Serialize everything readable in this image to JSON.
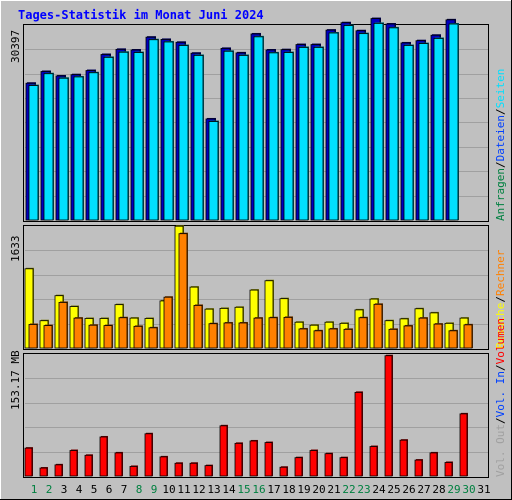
{
  "chart_data": {
    "type": "bar",
    "title": "Tages-Statistik im Monat Juni 2024",
    "days": [
      "1",
      "2",
      "3",
      "4",
      "5",
      "6",
      "7",
      "8",
      "9",
      "10",
      "11",
      "12",
      "13",
      "14",
      "15",
      "16",
      "17",
      "18",
      "19",
      "20",
      "21",
      "22",
      "23",
      "24",
      "25",
      "26",
      "27",
      "28",
      "29",
      "30",
      "31"
    ],
    "weekend_days": [
      "1",
      "2",
      "8",
      "9",
      "15",
      "16",
      "22",
      "23",
      "29",
      "30"
    ],
    "panels": {
      "top": {
        "ylabel": "30397",
        "ymax": 30397,
        "series": [
          {
            "name": "Anfragen",
            "values": [
              21320,
              23150,
              22450,
              22650,
              23300,
              25800,
              26600,
              26500,
              28500,
              28150,
              27700,
              26000,
              15750,
              26750,
              26050,
              29000,
              26500,
              26550,
              27350,
              27350,
              29600,
              30750,
              29500,
              31400,
              30550,
              27600,
              27950,
              28800,
              31200,
              null,
              null
            ]
          },
          {
            "name": "Seiten",
            "values": [
              20950,
              22800,
              22100,
              22300,
              22950,
              25350,
              26150,
              26100,
              28100,
              27750,
              27200,
              25650,
              15350,
              26300,
              25650,
              28550,
              26050,
              26100,
              26900,
              26900,
              29150,
              30300,
              29050,
              30650,
              29950,
              27200,
              27500,
              28300,
              30550,
              null,
              null
            ]
          },
          {
            "name": "Dateien",
            "values": [
              null,
              null,
              null,
              null,
              null,
              null,
              null,
              null,
              null,
              null,
              null,
              null,
              null,
              null,
              null,
              null,
              null,
              null,
              null,
              null,
              null,
              null,
              null,
              null,
              null,
              null,
              null,
              null,
              null,
              null,
              null
            ]
          }
        ]
      },
      "middle": {
        "ylabel": "1633",
        "ymax": 1633,
        "series": [
          {
            "name": "Besuche",
            "values": [
              1060,
              365,
              700,
              555,
              395,
              395,
              580,
              400,
              395,
              630,
              1630,
              815,
              520,
              530,
              545,
              775,
              900,
              660,
              345,
              305,
              345,
              330,
              510,
              655,
              365,
              390,
              525,
              470,
              330,
              400,
              null
            ]
          },
          {
            "name": "Rechner",
            "values": [
              315,
              300,
              610,
              400,
              305,
              300,
              405,
              290,
              270,
              680,
              1530,
              570,
              325,
              335,
              335,
              400,
              405,
              410,
              255,
              230,
              255,
              250,
              405,
              585,
              250,
              295,
              400,
              320,
              230,
              310,
              null
            ]
          }
        ]
      },
      "bottom": {
        "ylabel": "153.17 MB",
        "ymax": 153.17,
        "series": [
          {
            "name": "Volumen",
            "values": [
              35,
              10,
              14,
              32,
              26,
              49,
              29,
              12,
              53,
              24,
              16,
              16,
              13,
              63,
              41,
              44,
              42,
              11,
              23,
              32,
              28,
              23,
              105,
              37,
              151,
              45,
              20,
              29,
              17,
              78,
              null
            ]
          }
        ]
      }
    },
    "right_legend": {
      "top": [
        {
          "label": "Anfragen",
          "color": "#008040"
        },
        {
          "label": "/",
          "color": "#000000"
        },
        {
          "label": "Dateien",
          "color": "#0040ff"
        },
        {
          "label": "/",
          "color": "#000000"
        },
        {
          "label": "Seiten",
          "color": "#00e0ff"
        }
      ],
      "middle": [
        {
          "label": "Besuche",
          "color": "#ffff00"
        },
        {
          "label": "/",
          "color": "#000000"
        },
        {
          "label": "Rechner",
          "color": "#ff8000"
        }
      ],
      "bottom": [
        {
          "label": "Vol. Out",
          "color": "#a0a0a0"
        },
        {
          "label": "/",
          "color": "#000000"
        },
        {
          "label": "Vol. In",
          "color": "#0040ff"
        },
        {
          "label": "/",
          "color": "#000000"
        },
        {
          "label": "Volumen",
          "color": "#ff0000"
        }
      ]
    }
  },
  "colors": {
    "title": "#0000ff",
    "day_weekday": "#000000",
    "day_weekend": "#008040",
    "anfragen": "#0000c0",
    "seiten": "#00e0ff",
    "besuche": "#ffff00",
    "rechner": "#ff8000",
    "volumen": "#ff0000",
    "grid": "#a0a0a0",
    "panel_bg": "#c0c0c0"
  }
}
